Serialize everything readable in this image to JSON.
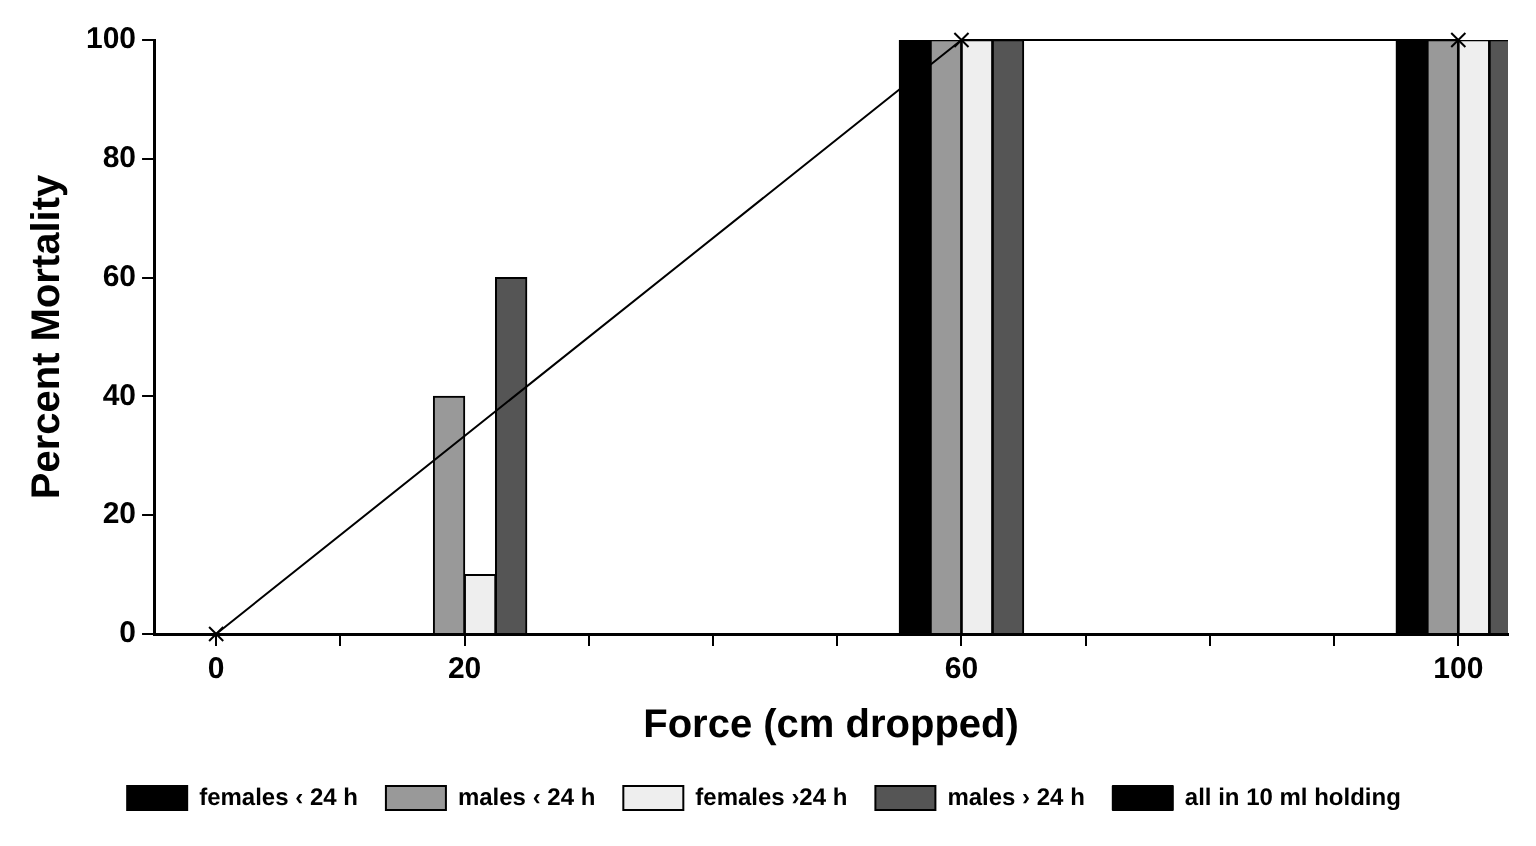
{
  "chart_data": {
    "type": "bar",
    "xlabel": "Force (cm dropped)",
    "ylabel": "Percent Mortality",
    "xlim": [
      -5,
      104
    ],
    "xticks": [
      0,
      {
        "value": 10,
        "label": null
      },
      20,
      {
        "value": 30,
        "label": null
      },
      {
        "value": 40,
        "label": null
      },
      {
        "value": 50,
        "label": null
      },
      60,
      {
        "value": 70,
        "label": null
      },
      {
        "value": 80,
        "label": null
      },
      {
        "value": 90,
        "label": null
      },
      100
    ],
    "ylim": [
      0,
      100
    ],
    "yticks": [
      0,
      20,
      40,
      60,
      80,
      100
    ],
    "grid": false,
    "legend": "bottom",
    "series": [
      {
        "name": "females ‹ 24 h",
        "color": "#000000",
        "x": [
          20,
          60,
          100
        ],
        "values": [
          0,
          100,
          100
        ]
      },
      {
        "name": "males ‹ 24 h",
        "color": "#999999",
        "x": [
          20,
          60,
          100
        ],
        "values": [
          40,
          100,
          100
        ]
      },
      {
        "name": "females ›24 h",
        "color": "#eeeeee",
        "x": [
          20,
          60,
          100
        ],
        "values": [
          10,
          100,
          100
        ]
      },
      {
        "name": "males › 24 h",
        "color": "#555555",
        "x": [
          20,
          60,
          100
        ],
        "values": [
          60,
          100,
          100
        ]
      },
      {
        "name": "all in 10 ml holding",
        "type": "line",
        "color": "#000000",
        "marker": "cross",
        "line_style": "solid",
        "x": [
          0,
          60,
          100
        ],
        "values": [
          0,
          100,
          100
        ]
      }
    ]
  }
}
